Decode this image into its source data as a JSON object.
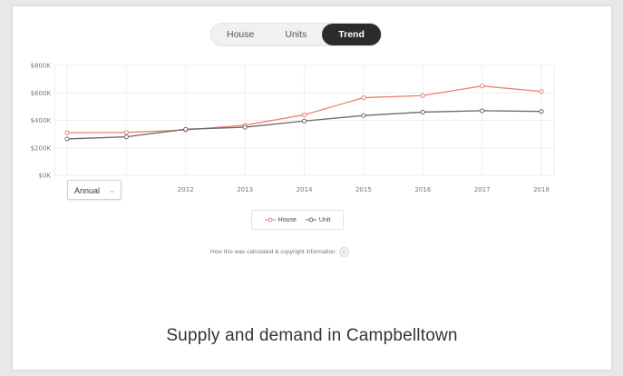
{
  "tabs": [
    {
      "label": "House",
      "active": false
    },
    {
      "label": "Units",
      "active": false
    },
    {
      "label": "Trend",
      "active": true
    }
  ],
  "period_select": {
    "value": "Annual"
  },
  "legend": {
    "house_label": "House",
    "unit_label": "Unit"
  },
  "calc_link": {
    "label": "How this was calculated & copyright information"
  },
  "section_heading": "Supply and demand in Campbelltown",
  "colors": {
    "house": "#e8826f",
    "unit": "#6b6b6b",
    "active_tab": "#2b2b2b"
  },
  "icons": {
    "select_chevron": "chevron-down-icon",
    "calc_toggle": "chevron-down-icon"
  },
  "chart_data": {
    "type": "line",
    "x": [
      "",
      "",
      "2012",
      "2013",
      "2014",
      "2015",
      "2016",
      "2017",
      "2018"
    ],
    "y_ticks": [
      "$0K",
      "$200K",
      "$400K",
      "$600K",
      "$800K"
    ],
    "ylim": [
      0,
      800000
    ],
    "grid": true,
    "series": [
      {
        "name": "House",
        "color": "#e8826f",
        "values": [
          310000,
          312000,
          330000,
          365000,
          440000,
          565000,
          580000,
          650000,
          610000
        ]
      },
      {
        "name": "Unit",
        "color": "#6b6b6b",
        "values": [
          265000,
          280000,
          335000,
          350000,
          395000,
          435000,
          460000,
          470000,
          465000
        ]
      }
    ]
  }
}
